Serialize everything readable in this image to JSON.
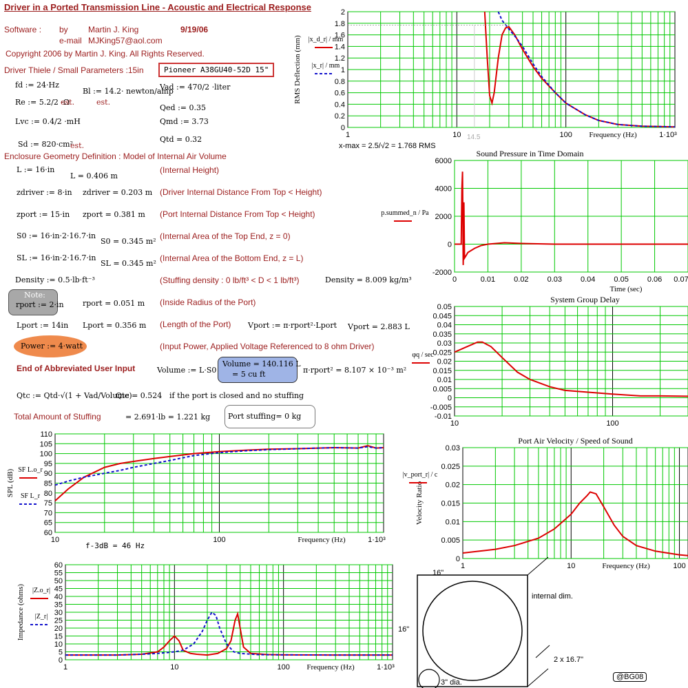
{
  "header": {
    "title": "Driver in a Ported Transmission Line - Acoustic and Electrical Response",
    "software_label": "Software :",
    "by": "by",
    "author": "Martin J. King",
    "date": "9/19/06",
    "email_label": "e-mail",
    "email": "MJKing57@aol.com",
    "copyright": "Copyright 2006 by Martin J. King. All Rights Reserved.",
    "driver_params_label": "Driver Thiele / Small Parameters :15in",
    "driver_name": "Pioneer A38GU40-52D 15\""
  },
  "params": {
    "fd": "fd := 24·Hz",
    "re": "Re := 5.2/2 ·Ω",
    "re_est": "est.",
    "bl": "Bl := 14.2· newton/amp",
    "bl_est": "est.",
    "vas": "Vad := 470/2 ·liter",
    "qed": "Qed := 0.35",
    "lvc": "Lvc := 0.4/2 ·mH",
    "qmd": "Qmd := 3.73",
    "qtd": "Qtd = 0.32",
    "sd": "Sd := 820·cm²",
    "sd_est": "est."
  },
  "geometry": {
    "heading": "Enclosure Geometry Definition : Model of Internal Air Volume",
    "rows": [
      {
        "def": "L := 16·in",
        "val": "L = 0.406 m",
        "desc": "(Internal Height)"
      },
      {
        "def": "zdriver := 8·in",
        "val": "zdriver = 0.203 m",
        "desc": "(Driver Internal Distance From Top < Height)"
      },
      {
        "def": "zport := 15·in",
        "val": "zport = 0.381 m",
        "desc": "(Port Internal Distance From Top < Height)"
      },
      {
        "def": "S0 := 16·in·2·16.7·in",
        "val": "S0 = 0.345 m²",
        "desc": "(Internal Area of the Top End, z = 0)"
      },
      {
        "def": "SL := 16·in·2·16.7·in",
        "val": "SL = 0.345 m²",
        "desc": "(Internal Area of the Bottom End, z = L)"
      },
      {
        "def": "Density := 0.5·lb·ft⁻³",
        "val": "",
        "desc": "(Stuffing density : 0 lb/ft³ < D < 1 lb/ft³)"
      },
      {
        "def": "rport := 2·in",
        "val": "rport = 0.051 m",
        "desc": "(Inside Radius of the Port)"
      },
      {
        "def": "Lport := 14in",
        "val": "Lport = 0.356 m",
        "desc": "(Length of the Port)"
      }
    ],
    "density_val": "Density = 8.009 kg/m³",
    "note": "Note:",
    "vport_def": "Vport := π·rport²·Lport",
    "vport_val": "Vport = 2.883 L",
    "power": "Power := 4·watt",
    "power_desc": "(Input Power, Applied Voltage Referenced to 8 ohm Driver)",
    "end_label": "End of Abbreviated User Input",
    "volume_def": "Volume := L·S0",
    "volume_val": "Volume = 140.116 L",
    "volume_val2": "=  5 cu ft",
    "port_area": "π·rport² = 8.107 × 10⁻³ m²",
    "qtc_def": "Qtc := Qtd·√(1 + Vad/Volume)",
    "qtc_val": "Qtc = 0.524",
    "qtc_note": "if the port is closed and no stuffing",
    "stuffing_label": "Total Amount of Stuffing",
    "stuffing_val": "= 2.691·lb = 1.221 kg",
    "port_stuffing": "Port stuffing=  0  kg"
  },
  "xmax": {
    "text": "x-max  =  2.5/√2 = 1.768  RMS",
    "marker": "14.5"
  },
  "f3db": "f-3dB = 46 Hz",
  "diagram": {
    "dim_top": "16\"",
    "dim_side": "16\"",
    "dim_depth": "2 x 16.7\"",
    "internal": "internal dim.",
    "port": "3\" dia.",
    "badge": "@BG08"
  },
  "colors": {
    "red": "#dd0000",
    "blue": "#1010cc",
    "grid": "#00c800",
    "title": "#9b1c1c"
  },
  "chart_data": [
    {
      "type": "line",
      "ylabel": "RMS Deflection (mm)",
      "xlabel": "Frequency (Hz)",
      "xscale": "log",
      "xlim": [
        1,
        1000
      ],
      "ylim": [
        0,
        2
      ],
      "yticks": [
        "0",
        "0.2",
        "0.4",
        "0.6",
        "0.8",
        "1",
        "1.2",
        "1.4",
        "1.6",
        "1.8",
        "2"
      ],
      "xticks": [
        "1",
        "10",
        "100",
        "1·10³"
      ],
      "legend": [
        "|x_d_r| / mm",
        "|x_r| / mm"
      ],
      "series": [
        {
          "x": [
            18,
            19,
            20,
            21,
            22,
            24,
            26,
            28,
            30,
            34,
            40,
            50,
            60,
            80,
            100,
            150,
            200,
            300,
            500,
            1000
          ],
          "y": [
            2.0,
            1.2,
            0.55,
            0.42,
            0.6,
            1.2,
            1.6,
            1.72,
            1.74,
            1.6,
            1.35,
            1.05,
            0.85,
            0.6,
            0.42,
            0.22,
            0.12,
            0.05,
            0.02,
            0.01
          ]
        },
        {
          "x": [
            24,
            26,
            30,
            34,
            40,
            50,
            60,
            80,
            100,
            150,
            200,
            300,
            500,
            1000
          ],
          "y": [
            2.0,
            1.85,
            1.7,
            1.58,
            1.4,
            1.1,
            0.88,
            0.6,
            0.42,
            0.22,
            0.12,
            0.05,
            0.02,
            0.01
          ]
        }
      ]
    },
    {
      "type": "line",
      "title": "Sound Pressure in Time Domain",
      "xlabel": "Time (sec)",
      "xlim": [
        0,
        0.07
      ],
      "ylim": [
        -2000,
        6000
      ],
      "xticks": [
        "0",
        "0.01",
        "0.02",
        "0.03",
        "0.04",
        "0.05",
        "0.06",
        "0.07"
      ],
      "yticks": [
        "-2000",
        "0",
        "2000",
        "4000",
        "6000"
      ],
      "legend": [
        "p.summed_n / Pa"
      ],
      "series": [
        {
          "x": [
            0,
            0.002,
            0.0022,
            0.0024,
            0.0026,
            0.0028,
            0.003,
            0.0035,
            0.004,
            0.006,
            0.008,
            0.01,
            0.015,
            0.02,
            0.03,
            0.07
          ],
          "y": [
            0,
            0,
            4000,
            5200,
            -1500,
            3000,
            -1000,
            -800,
            -600,
            -300,
            -100,
            0,
            100,
            50,
            0,
            0
          ]
        }
      ]
    },
    {
      "type": "line",
      "title": "System Group Delay",
      "xscale": "log",
      "xlim": [
        10,
        300
      ],
      "ylim": [
        -0.01,
        0.05
      ],
      "yticks": [
        "-0.01",
        "-0.005",
        "0",
        "0.005",
        "0.01",
        "0.015",
        "0.02",
        "0.025",
        "0.03",
        "0.035",
        "0.04",
        "0.045",
        "0.05"
      ],
      "xticks": [
        "10",
        "100"
      ],
      "legend": [
        "φq / sec"
      ],
      "series": [
        {
          "x": [
            10,
            12,
            14,
            15,
            17,
            20,
            25,
            30,
            40,
            50,
            70,
            100,
            150,
            200,
            300
          ],
          "y": [
            0.025,
            0.028,
            0.0305,
            0.0305,
            0.028,
            0.022,
            0.014,
            0.01,
            0.006,
            0.004,
            0.003,
            0.002,
            0.001,
            0.001,
            0.0008
          ]
        }
      ]
    },
    {
      "type": "line",
      "ylabel": "SPL (dB)",
      "xlabel": "Frequency (Hz)",
      "xscale": "log",
      "xlim": [
        10,
        1000
      ],
      "ylim": [
        60,
        110
      ],
      "yticks": [
        "60",
        "65",
        "70",
        "75",
        "80",
        "85",
        "90",
        "95",
        "100",
        "105",
        "110"
      ],
      "xticks": [
        "10",
        "100",
        "1·10³"
      ],
      "legend": [
        "SF L.o_r",
        "SF L_r"
      ],
      "series": [
        {
          "x": [
            10,
            12,
            15,
            20,
            25,
            30,
            40,
            50,
            70,
            100,
            150,
            200,
            300,
            500,
            700,
            800,
            900,
            1000
          ],
          "y": [
            76,
            82,
            88,
            93,
            95,
            96,
            97.5,
            98.5,
            100,
            101,
            101.8,
            102.2,
            102.5,
            103,
            102.8,
            104,
            102.8,
            103
          ]
        },
        {
          "x": [
            10,
            12,
            15,
            20,
            25,
            30,
            40,
            50,
            70,
            100,
            150,
            200,
            300,
            500,
            700,
            800,
            900,
            1000
          ],
          "y": [
            84,
            86,
            88,
            90,
            91.5,
            93,
            95,
            96.5,
            99,
            100.5,
            101.5,
            102,
            102.5,
            103,
            102.8,
            103.5,
            102.8,
            103
          ]
        }
      ]
    },
    {
      "type": "line",
      "title": "Port Air Velocity / Speed of Sound",
      "ylabel": "Velocity Ratio",
      "xlabel": "Frequency (Hz)",
      "xscale": "log",
      "xlim": [
        1,
        120
      ],
      "ylim": [
        0,
        0.03
      ],
      "yticks": [
        "0",
        "0.005",
        "0.01",
        "0.015",
        "0.02",
        "0.025",
        "0.03"
      ],
      "xticks": [
        "1",
        "10",
        "100"
      ],
      "legend": [
        "|v_port_r| / c"
      ],
      "series": [
        {
          "x": [
            1,
            2,
            3,
            5,
            7,
            10,
            12,
            14,
            15,
            17,
            20,
            25,
            30,
            40,
            60,
            100,
            120
          ],
          "y": [
            0.0015,
            0.0025,
            0.0035,
            0.0055,
            0.008,
            0.012,
            0.015,
            0.017,
            0.018,
            0.0175,
            0.014,
            0.009,
            0.006,
            0.0035,
            0.002,
            0.001,
            0.0008
          ]
        }
      ]
    },
    {
      "type": "line",
      "ylabel": "Impedance (ohms)",
      "xlabel": "Frequency (Hz)",
      "xscale": "log",
      "xlim": [
        1,
        1000
      ],
      "ylim": [
        0,
        60
      ],
      "yticks": [
        "0",
        "5",
        "10",
        "15",
        "20",
        "25",
        "30",
        "35",
        "40",
        "45",
        "50",
        "55",
        "60"
      ],
      "xticks": [
        "1",
        "10",
        "100",
        "1·10³"
      ],
      "legend": [
        "|Z.o_r|",
        "|Z_r|"
      ],
      "series": [
        {
          "x": [
            1,
            3,
            5,
            7,
            8,
            9,
            10,
            11,
            12,
            14,
            16,
            20,
            25,
            30,
            33,
            36,
            38,
            40,
            43,
            50,
            70,
            100,
            300,
            1000
          ],
          "y": [
            3,
            3,
            3.5,
            5,
            8,
            12,
            15,
            12,
            6,
            4,
            3.5,
            3,
            4,
            7,
            12,
            25,
            29,
            20,
            8,
            4,
            3.3,
            3.1,
            3,
            3
          ]
        },
        {
          "x": [
            1,
            3,
            5,
            7,
            10,
            12,
            15,
            18,
            20,
            22,
            24,
            26,
            30,
            35,
            40,
            60,
            100,
            300,
            1000
          ],
          "y": [
            3,
            3,
            3.5,
            4,
            5,
            6,
            10,
            18,
            25,
            30,
            28,
            20,
            10,
            5,
            4,
            3.2,
            3.1,
            3,
            3
          ]
        }
      ]
    }
  ]
}
